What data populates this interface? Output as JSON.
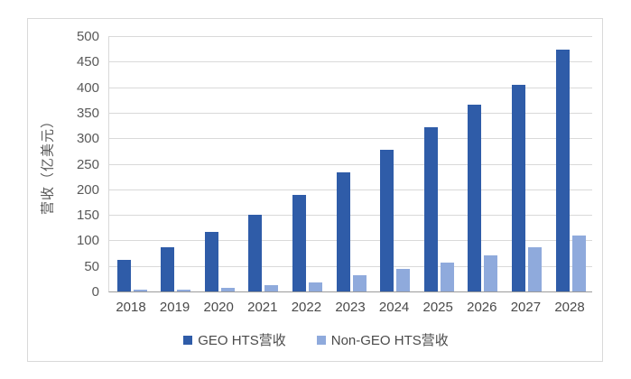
{
  "chart_data": {
    "type": "bar",
    "title": "",
    "ylabel": "营收（亿美元）",
    "xlabel": "",
    "categories": [
      "2018",
      "2019",
      "2020",
      "2021",
      "2022",
      "2023",
      "2024",
      "2025",
      "2026",
      "2027",
      "2028"
    ],
    "series": [
      {
        "name": "GEO HTS营收",
        "color": "#2f5ca8",
        "values": [
          62,
          86,
          116,
          151,
          189,
          233,
          278,
          321,
          366,
          405,
          474
        ]
      },
      {
        "name": "Non-GEO HTS营收",
        "color": "#8faadc",
        "values": [
          3,
          4,
          7,
          12,
          18,
          32,
          44,
          57,
          70,
          86,
          109
        ]
      }
    ],
    "ylim": [
      0,
      500
    ],
    "yticks": [
      0,
      50,
      100,
      150,
      200,
      250,
      300,
      350,
      400,
      450,
      500
    ],
    "grid": true,
    "legend_position": "bottom",
    "colors": {
      "gridline": "#d9d9d9",
      "axis_line": "#9b9b9b",
      "tick_text": "#595959",
      "category_text": "#4a4a4a",
      "frame_border": "#d9d9d9",
      "background": "#ffffff"
    }
  }
}
